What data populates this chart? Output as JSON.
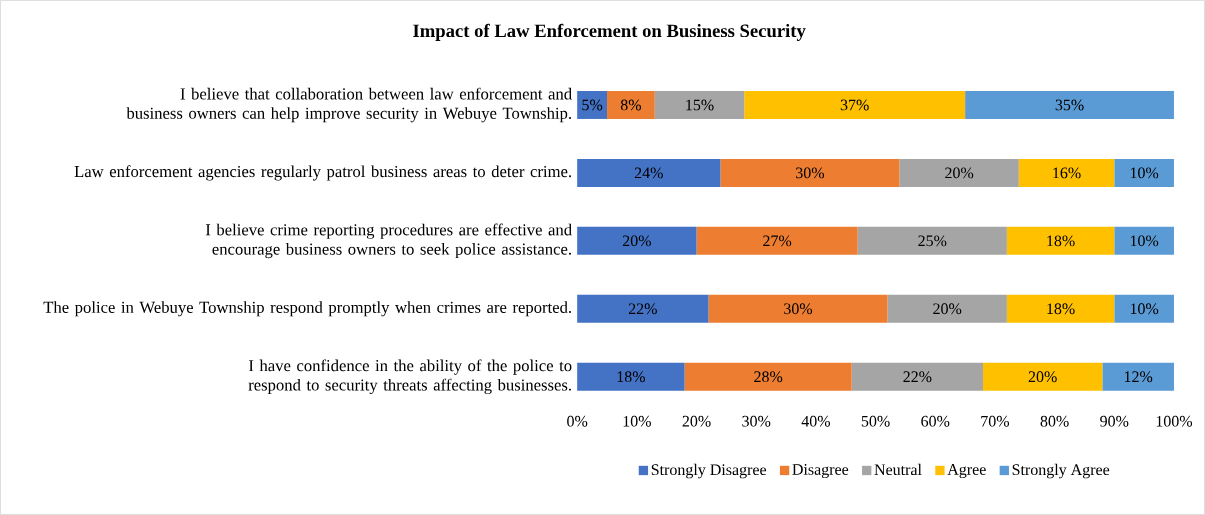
{
  "chart_data": {
    "type": "bar",
    "title": "Impact of Law Enforcement on Business Security",
    "orientation": "horizontal",
    "stacked": true,
    "categories": [
      "I believe that collaboration between law enforcement and business owners can help improve security in Webuye Township.",
      "Law enforcement agencies regularly patrol business areas to deter crime.",
      "I believe crime reporting procedures are effective and encourage business owners to seek police assistance.",
      "The police in Webuye Township respond promptly when crimes are reported.",
      "I have confidence in the ability of the police to respond to security threats affecting businesses."
    ],
    "series": [
      {
        "name": "Strongly Disagree",
        "color": "#4472c4",
        "values": [
          5,
          24,
          20,
          22,
          18
        ],
        "value_labels": [
          "5%",
          "24%",
          "20%",
          "22%",
          "18%"
        ]
      },
      {
        "name": "Disagree",
        "color": "#ed7d31",
        "values": [
          8,
          30,
          27,
          30,
          28
        ],
        "value_labels": [
          "8%",
          "30%",
          "27%",
          "30%",
          "28%"
        ]
      },
      {
        "name": "Neutral",
        "color": "#a5a5a5",
        "values": [
          15,
          20,
          25,
          20,
          22
        ],
        "value_labels": [
          "15%",
          "20%",
          "25%",
          "20%",
          "22%"
        ]
      },
      {
        "name": "Agree",
        "color": "#ffc000",
        "values": [
          37,
          16,
          18,
          18,
          20
        ],
        "value_labels": [
          "37%",
          "16%",
          "18%",
          "18%",
          "20%"
        ]
      },
      {
        "name": "Strongly Agree",
        "color": "#5b9bd5",
        "values": [
          35,
          10,
          10,
          10,
          12
        ],
        "value_labels": [
          "35%",
          "10%",
          "10%",
          "10%",
          "12%"
        ]
      }
    ],
    "xlim": [
      0,
      100
    ],
    "xticks": [
      {
        "value": 0,
        "label": "0%"
      },
      {
        "value": 10,
        "label": "10%"
      },
      {
        "value": 20,
        "label": "20%"
      },
      {
        "value": 30,
        "label": "30%"
      },
      {
        "value": 40,
        "label": "40%"
      },
      {
        "value": 50,
        "label": "50%"
      },
      {
        "value": 60,
        "label": "60%"
      },
      {
        "value": 70,
        "label": "70%"
      },
      {
        "value": 80,
        "label": "80%"
      },
      {
        "value": 90,
        "label": "90%"
      },
      {
        "value": 100,
        "label": "100%"
      }
    ],
    "legend": "bottom"
  }
}
